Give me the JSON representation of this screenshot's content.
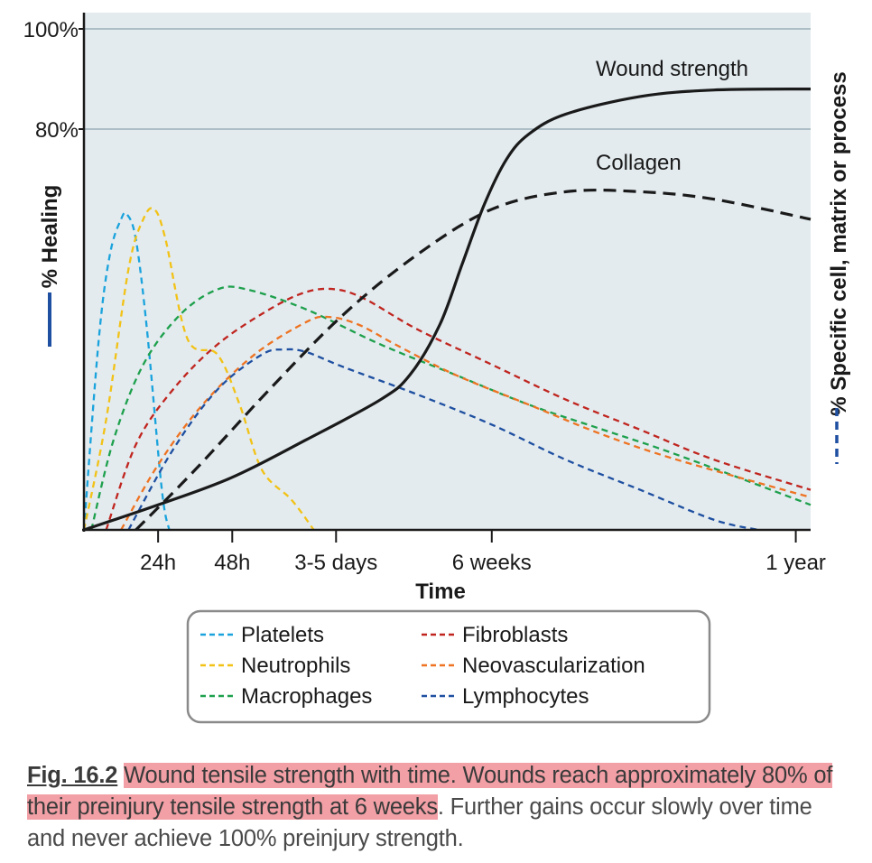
{
  "chart_data": {
    "type": "line",
    "xlabel": "Time",
    "ylabel_left": "% Healing",
    "ylabel_right": "% Specific cell, matrix or process",
    "y_ticks": [
      "100%",
      "80%"
    ],
    "y_tick_values": [
      100,
      80
    ],
    "ylim": [
      0,
      100
    ],
    "x_categories": [
      "24h",
      "48h",
      "3-5 days",
      "6 weeks",
      "1 year"
    ],
    "x_category_positions": [
      1,
      2,
      3.4,
      5.5,
      9.6
    ],
    "xlim": [
      0,
      9.8
    ],
    "grid": "horizontal lines at 80% and 100%",
    "series": [
      {
        "name": "Wound strength",
        "style": "solid",
        "color": "#1a1a1a",
        "x": [
          0,
          1,
          2,
          3,
          4,
          4.4,
          4.8,
          5.1,
          5.4,
          5.7,
          6.0,
          6.5,
          7.5,
          8.5,
          9.8
        ],
        "y": [
          0,
          5,
          10.5,
          18,
          26,
          31,
          41,
          53,
          65,
          74,
          79,
          83,
          86.5,
          87.8,
          88
        ]
      },
      {
        "name": "Collagen",
        "style": "dashed",
        "color": "#1a1a1a",
        "x": [
          0.7,
          1.5,
          2.5,
          3.5,
          4.5,
          5.5,
          6.5,
          7.5,
          8.5,
          9.8
        ],
        "y": [
          0,
          12,
          28,
          43,
          55,
          64,
          67.5,
          67.5,
          66,
          62
        ]
      },
      {
        "name": "Platelets",
        "style": "dashed",
        "color": "#1aa3dc",
        "x": [
          0,
          0.2,
          0.35,
          0.5,
          0.58,
          0.7,
          0.85,
          1.05,
          1.15
        ],
        "y": [
          0,
          38,
          55,
          62,
          63,
          58,
          40,
          8,
          0
        ]
      },
      {
        "name": "Neutrophils",
        "style": "dashed",
        "color": "#f2c216",
        "x": [
          0,
          0.3,
          0.6,
          0.8,
          0.95,
          1.1,
          1.4,
          1.8,
          2.1,
          2.4,
          2.8,
          3.1
        ],
        "y": [
          0,
          22,
          52,
          62,
          64,
          58,
          38,
          35,
          25,
          12,
          6,
          0
        ]
      },
      {
        "name": "Macrophages",
        "style": "dashed",
        "color": "#1ea04c",
        "x": [
          0.1,
          0.4,
          0.8,
          1.3,
          1.8,
          2.2,
          3,
          4,
          5,
          6,
          7,
          8,
          9.8
        ],
        "y": [
          0,
          18,
          33,
          43,
          48,
          48,
          44,
          37,
          31,
          25,
          20,
          15,
          5
        ]
      },
      {
        "name": "Fibroblasts",
        "style": "dashed",
        "color": "#c0251f",
        "x": [
          0.3,
          0.7,
          1.2,
          1.8,
          2.5,
          3,
          3.4,
          3.8,
          4.5,
          5.5,
          6.5,
          7.5,
          8.5,
          9.8
        ],
        "y": [
          0,
          17,
          28,
          37,
          44,
          47.5,
          48,
          46,
          40,
          33,
          26,
          20,
          14,
          8
        ]
      },
      {
        "name": "Neovascularization",
        "style": "dashed",
        "color": "#ee7322",
        "x": [
          0.5,
          1,
          1.6,
          2.3,
          3,
          3.3,
          3.7,
          4.2,
          5,
          6,
          7,
          8,
          9.8
        ],
        "y": [
          0,
          13,
          25,
          35,
          41.5,
          42.5,
          41,
          37,
          31,
          25,
          19,
          14,
          6.5
        ]
      },
      {
        "name": "Lymphocytes",
        "style": "dashed",
        "color": "#1e4fa0",
        "x": [
          0.6,
          1.2,
          1.8,
          2.4,
          2.7,
          3,
          3.5,
          4.5,
          5.5,
          6.5,
          7.5,
          8.5,
          9.1
        ],
        "y": [
          0,
          16,
          28,
          35,
          36,
          35.5,
          32.5,
          27,
          21,
          14,
          8,
          2,
          0
        ]
      }
    ],
    "legend": {
      "placement": "bottom-center",
      "columns": [
        [
          "Platelets",
          "Neutrophils",
          "Macrophages"
        ],
        [
          "Fibroblasts",
          "Neovascularization",
          "Lymphocytes"
        ]
      ]
    }
  },
  "colors": {
    "plot_background": "#e3ebef",
    "highlight": "#f2a0a6",
    "left_axis_marker": "#1e4fa0",
    "right_axis_marker": "#1e4fa0"
  },
  "caption": {
    "figure_label": "Fig. 16.2",
    "highlighted_text_1": "Wound tensile strength with time. Wounds reach approximately 80% of",
    "highlighted_text_2": "their preinjury tensile strength at 6 weeks",
    "rest_text": ". Further gains occur slowly over time and never achieve 100% preinjury strength."
  }
}
